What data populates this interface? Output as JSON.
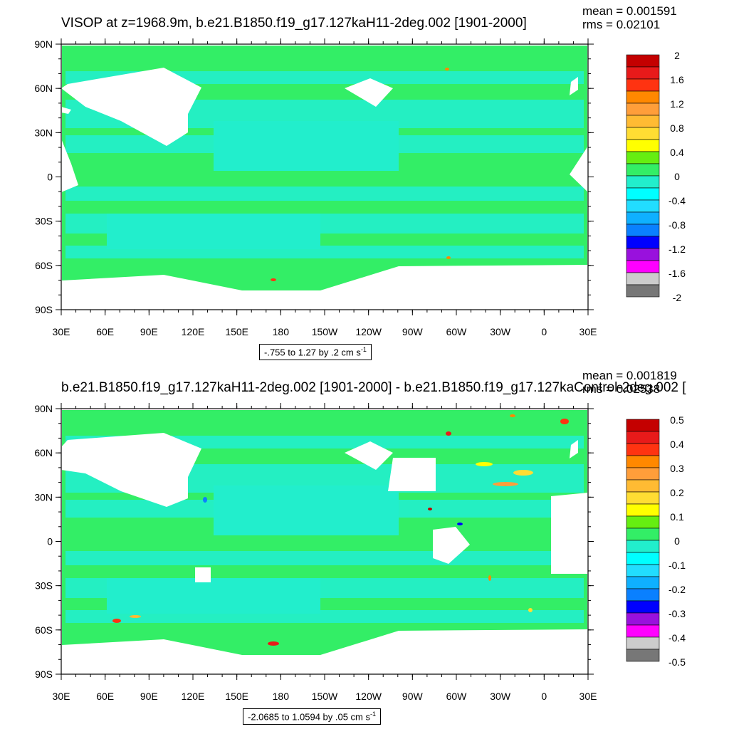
{
  "panels": [
    {
      "title": "VISOP at z=1968.9m, b.e21.B1850.f19_g17.127kaH11-2deg.002 [1901-2000]",
      "mean_text": "mean = 0.001591",
      "rms_text": "rms = 0.02101",
      "range_text": "-.755 to 1.27 by .2 cm s",
      "range_exp": "-1",
      "colorbar_labels": [
        "2",
        "1.6",
        "1.2",
        "0.8",
        "0.4",
        "0",
        "-0.4",
        "-0.8",
        "-1.2",
        "-1.6",
        "-2"
      ]
    },
    {
      "title": "b.e21.B1850.f19_g17.127kaH11-2deg.002 [1901-2000] - b.e21.B1850.f19_g17.127kaControl-2deg.002 [",
      "mean_text": "mean = 0.001819",
      "rms_text": "rms = 0.02538",
      "range_text": "-2.0685 to 1.0594 by .05 cm s",
      "range_exp": "-1",
      "colorbar_labels": [
        "0.5",
        "0.4",
        "0.3",
        "0.2",
        "0.1",
        "0",
        "-0.1",
        "-0.2",
        "-0.3",
        "-0.4",
        "-0.5"
      ]
    }
  ],
  "axes": {
    "y_labels": [
      "90N",
      "60N",
      "30N",
      "0",
      "30S",
      "60S",
      "90S"
    ],
    "x_labels": [
      "30E",
      "60E",
      "90E",
      "120E",
      "150E",
      "180",
      "150W",
      "120W",
      "90W",
      "60W",
      "30W",
      "0",
      "30E"
    ]
  },
  "colors": {
    "ocean_background": "#33ee66",
    "ocean_negative": "#22eecc",
    "land": "#ffffff",
    "colorbar": [
      "#c40000",
      "#e81a1a",
      "#ff3311",
      "#ff8800",
      "#ff9e3a",
      "#ffbb33",
      "#ffdd33",
      "#ffff00",
      "#66ee11",
      "#33ee66",
      "#22eecc",
      "#00ffff",
      "#22ddff",
      "#0fb0ff",
      "#0a80ff",
      "#0000ff",
      "#9911dd",
      "#ff00ff",
      "#cccccc",
      "#777777"
    ]
  }
}
